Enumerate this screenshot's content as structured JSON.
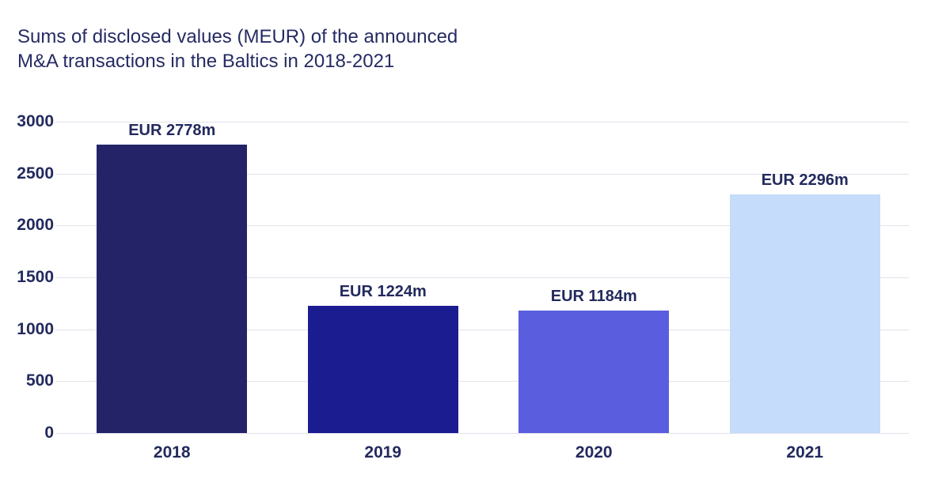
{
  "title": {
    "line1": "Sums of disclosed values (MEUR) of the announced",
    "line2": "M&A transactions in the Baltics in 2018-2021"
  },
  "chart_data": {
    "type": "bar",
    "title": "Sums of disclosed values (MEUR) of the announced M&A transactions in the Baltics in 2018-2021",
    "categories": [
      "2018",
      "2019",
      "2020",
      "2021"
    ],
    "values": [
      2778,
      1224,
      1184,
      2296
    ],
    "value_labels": [
      "EUR 2778m",
      "EUR 1224m",
      "EUR 1184m",
      "EUR 2296m"
    ],
    "bar_colors": [
      "#242368",
      "#1b1c8f",
      "#5a5ddd",
      "#c5dcfa"
    ],
    "xlabel": "",
    "ylabel": "",
    "ylim": [
      0,
      3000
    ],
    "yticks": [
      0,
      500,
      1000,
      1500,
      2000,
      2500,
      3000
    ],
    "grid": true,
    "legend_position": "none"
  },
  "colors": {
    "text": "#232a5e",
    "title_text": "#262b63",
    "gridline": "#e2e2ec",
    "background": "#ffffff"
  }
}
